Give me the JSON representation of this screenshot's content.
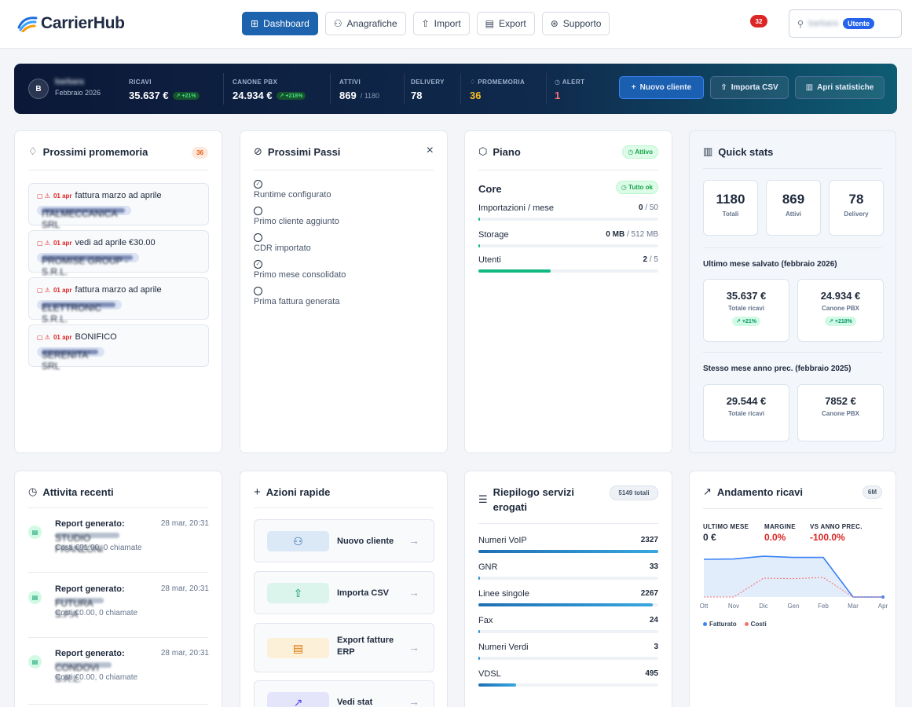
{
  "brand": {
    "name": "CarrierHub"
  },
  "nav": [
    {
      "label": "Dashboard",
      "active": true
    },
    {
      "label": "Anagrafiche"
    },
    {
      "label": "Import"
    },
    {
      "label": "Export"
    },
    {
      "label": "Supporto"
    }
  ],
  "header": {
    "notifications": "32",
    "username": "barbara",
    "role": "Utente"
  },
  "banner": {
    "avatar": "B",
    "user": "barbara",
    "period": "Febbraio 2026",
    "stats": [
      {
        "label": "RICAVI",
        "value": "35.637 €",
        "delta": "+21%"
      },
      {
        "label": "CANONE PBX",
        "value": "24.934 €",
        "delta": "+218%"
      },
      {
        "label": "ATTIVI",
        "value": "869",
        "of": "/ 1180"
      },
      {
        "label": "DELIVERY",
        "value": "78"
      },
      {
        "label": "PROMEMORIA",
        "value": "36",
        "color": "#fbbf24"
      },
      {
        "label": "ALERT",
        "value": "1",
        "color": "#f87171"
      }
    ],
    "buttons": [
      "Nuovo cliente",
      "Importa CSV",
      "Apri statistiche"
    ]
  },
  "reminders": {
    "title": "Prossimi promemoria",
    "count": "36",
    "items": [
      {
        "date": "01 apr",
        "text": "fattura marzo ad aprile",
        "client": "ITALMECCANICA SRL"
      },
      {
        "date": "01 apr",
        "text": "vedi ad aprile €30.00",
        "client": "PROMISE GROUP - S.R.L."
      },
      {
        "date": "01 apr",
        "text": "fattura marzo ad aprile",
        "client": "ELETTRONIC S.R.L."
      },
      {
        "date": "01 apr",
        "text": "BONIFICO",
        "client": "SERENITA' SRL"
      }
    ]
  },
  "next_steps": {
    "title": "Prossimi Passi",
    "close": "×",
    "items": [
      {
        "label": "Runtime configurato",
        "done": true
      },
      {
        "label": "Primo cliente aggiunto",
        "done": false
      },
      {
        "label": "CDR importato",
        "done": false
      },
      {
        "label": "Primo mese consolidato",
        "done": true
      },
      {
        "label": "Prima fattura generata",
        "done": false
      }
    ]
  },
  "plan": {
    "title": "Piano",
    "status": "Attivo",
    "name": "Core",
    "health": "Tutto ok",
    "meters": [
      {
        "label": "Importazioni / mese",
        "used": "0",
        "limit": "/ 50",
        "fill": 0.0
      },
      {
        "label": "Storage",
        "used": "0 MB",
        "limit": "/ 512 MB",
        "fill": 0.0
      },
      {
        "label": "Utenti",
        "used": "2",
        "limit": "/ 5",
        "fill": 0.4
      }
    ]
  },
  "quick_stats": {
    "title": "Quick stats",
    "counts": [
      {
        "value": "1180",
        "label": "Totali"
      },
      {
        "value": "869",
        "label": "Attivi"
      },
      {
        "value": "78",
        "label": "Delivery"
      }
    ],
    "last_month_title": "Ultimo mese salvato (febbraio 2026)",
    "last_month": [
      {
        "value": "35.637 €",
        "label": "Totale ricavi",
        "delta": "+21%"
      },
      {
        "value": "24.934 €",
        "label": "Canone PBX",
        "delta": "+218%"
      }
    ],
    "prev_year_title": "Stesso mese anno prec. (febbraio 2025)",
    "prev_year": [
      {
        "value": "29.544 €",
        "label": "Totale ricavi"
      },
      {
        "value": "7852 €",
        "label": "Canone PBX"
      }
    ]
  },
  "activity": {
    "title": "Attivita recenti",
    "items": [
      {
        "title": "Report generato:",
        "time": "28 mar, 20:31",
        "client": "STUDIO FRANZONI",
        "detail": "Costi €91.00, 0 chiamate"
      },
      {
        "title": "Report generato:",
        "time": "28 mar, 20:31",
        "client": "FUTURA S.P.A",
        "detail": "Costi €0.00, 0 chiamate"
      },
      {
        "title": "Report generato:",
        "time": "28 mar, 20:31",
        "client": "CONDOVI S.R.L.",
        "detail": "Costi €0.00, 0 chiamate"
      }
    ]
  },
  "quick_actions": {
    "title": "Azioni rapide",
    "items": [
      {
        "label": "Nuovo cliente",
        "color": "#dbe8f6",
        "icon": "users-icon"
      },
      {
        "label": "Importa CSV",
        "color": "#dcf5ec",
        "icon": "upload-icon"
      },
      {
        "label": "Export fatture ERP",
        "color": "#fdf0d9",
        "icon": "document-icon"
      },
      {
        "label": "Vedi stat",
        "color": "#e4e5fb",
        "icon": "trend-icon"
      }
    ]
  },
  "services": {
    "title": "Riepilogo servizi erogati",
    "total": "5149 totali",
    "items": [
      {
        "label": "Numeri VoIP",
        "value": "2327",
        "fill": 1.0
      },
      {
        "label": "GNR",
        "value": "33",
        "fill": 0.014
      },
      {
        "label": "Linee singole",
        "value": "2267",
        "fill": 0.97
      },
      {
        "label": "Fax",
        "value": "24",
        "fill": 0.01
      },
      {
        "label": "Numeri Verdi",
        "value": "3",
        "fill": 0.005
      },
      {
        "label": "VDSL",
        "value": "495",
        "fill": 0.21
      }
    ]
  },
  "revenue": {
    "title": "Andamento ricavi",
    "range": "6M",
    "kpis": [
      {
        "label": "ULTIMO MESE",
        "value": "0 €",
        "color": "#1e293b"
      },
      {
        "label": "MARGINE",
        "value": "0.0%",
        "color": "#dc2626"
      },
      {
        "label": "VS ANNO PREC.",
        "value": "-100.0%",
        "color": "#dc2626"
      }
    ],
    "legend": {
      "fatturato": "Fatturato",
      "costi": "Costi"
    }
  },
  "chart_data": {
    "type": "area",
    "categories": [
      "Ott",
      "Nov",
      "Dic",
      "Gen",
      "Feb",
      "Mar",
      "Apr"
    ],
    "series": [
      {
        "name": "Fatturato",
        "values": [
          32000,
          32300,
          34600,
          33600,
          33600,
          0,
          0
        ],
        "color": "#3b82f6"
      },
      {
        "name": "Costi",
        "values": [
          0,
          0,
          16000,
          15600,
          16600,
          0,
          0
        ],
        "color": "#f87171"
      }
    ],
    "ylim": [
      0,
      40000
    ],
    "grid": false,
    "legend": "bottom-left"
  }
}
